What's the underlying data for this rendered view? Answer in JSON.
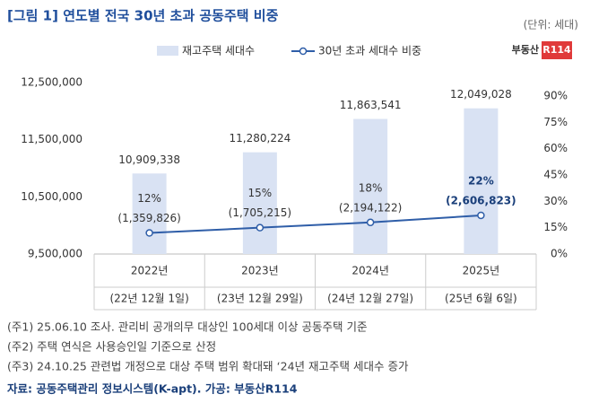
{
  "chart_data": {
    "type": "bar",
    "title": "[그림 1] 연도별 전국 30년 초과 공동주택 비중",
    "unit": "(단위: 세대)",
    "logo": [
      "부동산",
      "R114"
    ],
    "categories": [
      "2022년",
      "2023년",
      "2024년",
      "2025년"
    ],
    "category_dates": [
      "(22년 12월 1일)",
      "(23년 12월 29일)",
      "(24년 12월 27일)",
      "(25년 6월 6일)"
    ],
    "series": [
      {
        "name": "재고주택 세대수",
        "type": "bar",
        "color": "#d9e2f3",
        "values": [
          10909338,
          11280224,
          11863541,
          12049028
        ],
        "value_labels": [
          "10,909,338",
          "11,280,224",
          "11,863,541",
          "12,049,028"
        ]
      },
      {
        "name": "30년 초과 세대수 비중",
        "type": "line",
        "axis": "y2",
        "color": "#2f5ea8",
        "values": [
          12,
          15,
          18,
          22
        ],
        "value_labels": [
          "12%",
          "15%",
          "18%",
          "22%"
        ],
        "counts": [
          1359826,
          1705215,
          2194122,
          2606823
        ],
        "count_labels": [
          "(1,359,826)",
          "(1,705,215)",
          "(2,194,122)",
          "(2,606,823)"
        ]
      }
    ],
    "ylim": [
      9500000,
      12500000
    ],
    "yticks": [
      {
        "value": 9500000,
        "label": "9,500,000"
      },
      {
        "value": 10500000,
        "label": "10,500,000"
      },
      {
        "value": 11500000,
        "label": "11,500,000"
      },
      {
        "value": 12500000,
        "label": "12,500,000"
      }
    ],
    "y2lim": [
      0,
      97.7
    ],
    "y2ticks": [
      {
        "value": 0,
        "label": "0%"
      },
      {
        "value": 15,
        "label": "15%"
      },
      {
        "value": 30,
        "label": "30%"
      },
      {
        "value": 45,
        "label": "45%"
      },
      {
        "value": 60,
        "label": "60%"
      },
      {
        "value": 75,
        "label": "75%"
      },
      {
        "value": 90,
        "label": "90%"
      }
    ],
    "notes": [
      "(주1) 25.06.10 조사. 관리비 공개의무 대상인 100세대 이상 공동주택 기준",
      "(주2) 주택 연식은 사용승인일 기준으로 산정",
      "(주3) 24.10.25 관련법 개정으로 대상 주택 범위 확대돼 ‘24년 재고주택 세대수 증가"
    ],
    "source": "자료: 공동주택관리 정보시스템(K-apt). 가공: 부동산R114"
  }
}
